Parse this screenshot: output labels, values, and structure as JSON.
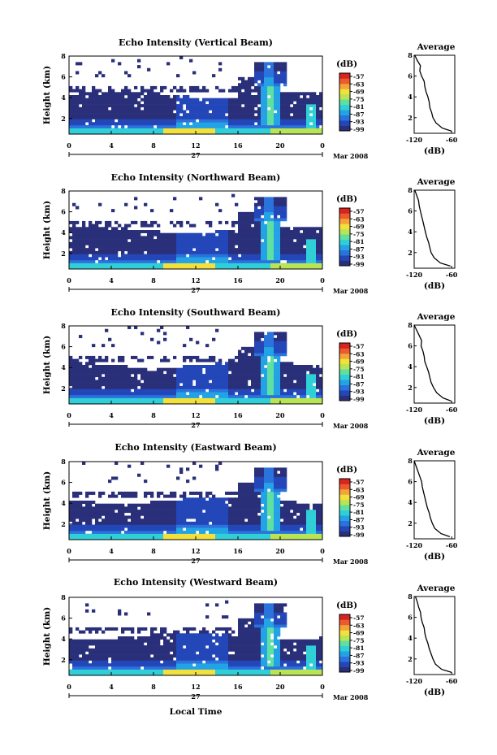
{
  "figure": {
    "x_axis_label": "Local Time",
    "date_label": "27",
    "month_label": "Mar 2008",
    "y_axis_label": "Height (km)",
    "colorbar_unit": "(dB)",
    "colorbar_ticks": [
      "-57",
      "-63",
      "-69",
      "-75",
      "-81",
      "-87",
      "-93",
      "-99"
    ],
    "colorbar_colors": [
      "#2a2f7a",
      "#2346b8",
      "#2a72dc",
      "#23a3e6",
      "#30cfd8",
      "#5fe0a0",
      "#b8e455",
      "#f2e03c",
      "#f4a23a",
      "#ec5a2e",
      "#d8241e"
    ],
    "missing_color": "#ffffff",
    "avg_title": "Average",
    "avg_xlabel": "(dB)"
  },
  "chart_data": [
    {
      "type": "heatmap",
      "title": "Echo Intensity (Vertical Beam)",
      "x": {
        "ticks": [
          "0",
          "4",
          "8",
          "12",
          "16",
          "20",
          "0"
        ],
        "range_hours": [
          0,
          24
        ]
      },
      "y": {
        "ticks": [
          "2",
          "4",
          "6",
          "8"
        ],
        "range_km": [
          0.5,
          8
        ]
      },
      "colorbar_db": [
        -99,
        -57
      ],
      "average_profile": {
        "xticks": [
          "-120",
          "-60"
        ],
        "xlim": [
          -120,
          -55
        ],
        "ylim": [
          0.5,
          8
        ],
        "height_km": [
          0.7,
          1.0,
          1.5,
          2.0,
          2.5,
          3.0,
          3.5,
          4.0,
          4.5,
          5.0,
          5.5,
          6.0,
          6.5,
          7.0,
          7.5,
          8.0
        ],
        "db": [
          -60,
          -75,
          -85,
          -90,
          -92,
          -95,
          -96,
          -98,
          -101,
          -103,
          -104,
          -108,
          -111,
          -110,
          -115,
          -119
        ]
      }
    },
    {
      "type": "heatmap",
      "title": "Echo Intensity (Northward Beam)",
      "x": {
        "ticks": [
          "0",
          "4",
          "8",
          "12",
          "16",
          "20",
          "0"
        ],
        "range_hours": [
          0,
          24
        ]
      },
      "y": {
        "ticks": [
          "2",
          "4",
          "6",
          "8"
        ],
        "range_km": [
          0.5,
          8
        ]
      },
      "colorbar_db": [
        -99,
        -57
      ],
      "average_profile": {
        "xticks": [
          "-120",
          "-60"
        ],
        "xlim": [
          -120,
          -55
        ],
        "ylim": [
          0.5,
          8
        ],
        "height_km": [
          0.7,
          1.0,
          1.5,
          2.0,
          2.5,
          3.0,
          3.5,
          4.0,
          4.5,
          5.0,
          5.5,
          6.0,
          6.5,
          7.0,
          7.5,
          8.0
        ],
        "db": [
          -62,
          -78,
          -88,
          -93,
          -95,
          -97,
          -100,
          -102,
          -104,
          -106,
          -108,
          -110,
          -112,
          -113,
          -116,
          -119
        ]
      }
    },
    {
      "type": "heatmap",
      "title": "Echo Intensity (Southward Beam)",
      "x": {
        "ticks": [
          "0",
          "4",
          "8",
          "12",
          "16",
          "20",
          "0"
        ],
        "range_hours": [
          0,
          24
        ]
      },
      "y": {
        "ticks": [
          "2",
          "4",
          "6",
          "8"
        ],
        "range_km": [
          0.5,
          8
        ]
      },
      "colorbar_db": [
        -99,
        -57
      ],
      "average_profile": {
        "xticks": [
          "-120",
          "-60"
        ],
        "xlim": [
          -120,
          -55
        ],
        "ylim": [
          0.5,
          8
        ],
        "height_km": [
          0.7,
          1.0,
          1.5,
          2.0,
          2.5,
          3.0,
          3.5,
          4.0,
          4.5,
          5.0,
          5.5,
          6.0,
          6.5,
          7.0,
          7.5,
          8.0
        ],
        "db": [
          -61,
          -74,
          -84,
          -89,
          -93,
          -95,
          -97,
          -100,
          -103,
          -104,
          -106,
          -109,
          -108,
          -112,
          -116,
          -120
        ]
      }
    },
    {
      "type": "heatmap",
      "title": "Echo Intensity (Eastward Beam)",
      "x": {
        "ticks": [
          "0",
          "4",
          "8",
          "12",
          "16",
          "20",
          "0"
        ],
        "range_hours": [
          0,
          24
        ]
      },
      "y": {
        "ticks": [
          "2",
          "4",
          "6",
          "8"
        ],
        "range_km": [
          0.5,
          8
        ]
      },
      "colorbar_db": [
        -99,
        -57
      ],
      "average_profile": {
        "xticks": [
          "-120",
          "-60"
        ],
        "xlim": [
          -120,
          -55
        ],
        "ylim": [
          0.5,
          8
        ],
        "height_km": [
          0.7,
          1.0,
          1.5,
          2.0,
          2.5,
          3.0,
          3.5,
          4.0,
          4.5,
          5.0,
          5.5,
          6.0,
          6.5,
          7.0,
          7.5,
          8.0
        ],
        "db": [
          -63,
          -77,
          -87,
          -91,
          -94,
          -96,
          -99,
          -101,
          -103,
          -105,
          -107,
          -108,
          -111,
          -114,
          -117,
          -120
        ]
      }
    },
    {
      "type": "heatmap",
      "title": "Echo Intensity (Westward Beam)",
      "x": {
        "ticks": [
          "0",
          "4",
          "8",
          "12",
          "16",
          "20",
          "0"
        ],
        "range_hours": [
          0,
          24
        ]
      },
      "y": {
        "ticks": [
          "2",
          "4",
          "6",
          "8"
        ],
        "range_km": [
          0.5,
          8
        ]
      },
      "colorbar_db": [
        -99,
        -57
      ],
      "average_profile": {
        "xticks": [
          "-120",
          "-60"
        ],
        "xlim": [
          -120,
          -55
        ],
        "ylim": [
          0.5,
          8
        ],
        "height_km": [
          0.7,
          1.0,
          1.5,
          2.0,
          2.5,
          3.0,
          3.5,
          4.0,
          4.5,
          5.0,
          5.5,
          6.0,
          6.5,
          7.0,
          7.5,
          8.0
        ],
        "db": [
          -60,
          -76,
          -86,
          -90,
          -93,
          -96,
          -98,
          -101,
          -103,
          -104,
          -107,
          -109,
          -110,
          -113,
          -115,
          -118
        ]
      }
    }
  ]
}
